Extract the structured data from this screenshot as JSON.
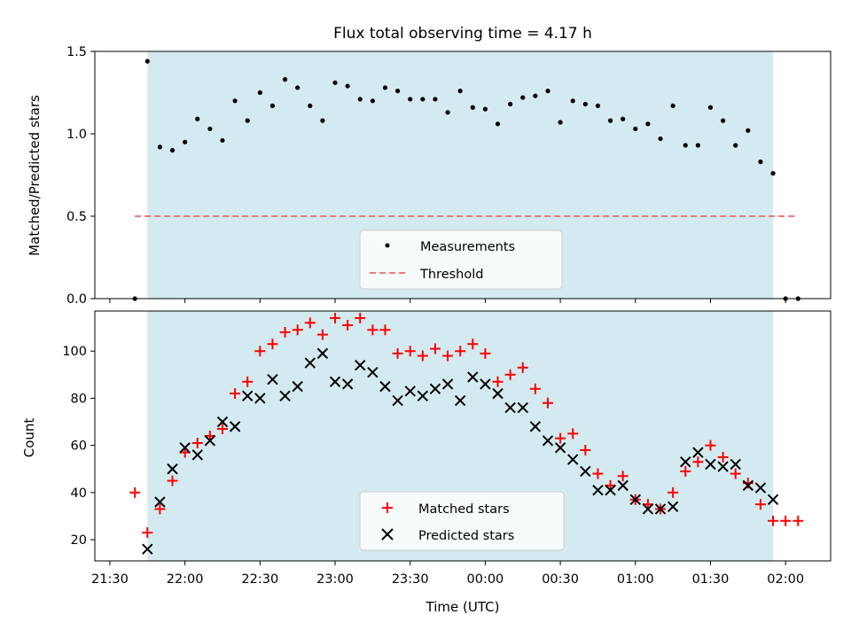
{
  "chart_data": [
    {
      "id": "top",
      "type": "scatter",
      "title": "Flux total observing time = 4.17 h",
      "ylabel": "Matched/Predicted stars",
      "xlabel": "",
      "ylim": [
        0,
        1.5
      ],
      "yticks": [
        0.0,
        0.5,
        1.0,
        1.5
      ],
      "ytick_labels": [
        "0.0",
        "0.5",
        "1.0",
        "1.5"
      ],
      "x_is_time": true,
      "xlim": [
        "21:24",
        "02:18"
      ],
      "shaded_interval": [
        "21:45",
        "01:55"
      ],
      "shade_color": "#d3eaf0",
      "series": [
        {
          "name": "Measurements",
          "marker": "dot",
          "color": "#000000",
          "x": [
            "21:40",
            "21:45",
            "21:50",
            "21:55",
            "22:00",
            "22:05",
            "22:10",
            "22:15",
            "22:20",
            "22:25",
            "22:30",
            "22:35",
            "22:40",
            "22:45",
            "22:50",
            "22:55",
            "23:00",
            "23:05",
            "23:10",
            "23:15",
            "23:20",
            "23:25",
            "23:30",
            "23:35",
            "23:40",
            "23:45",
            "23:50",
            "23:55",
            "00:00",
            "00:05",
            "00:10",
            "00:15",
            "00:20",
            "00:25",
            "00:30",
            "00:35",
            "00:40",
            "00:45",
            "00:50",
            "00:55",
            "01:00",
            "01:05",
            "01:10",
            "01:15",
            "01:20",
            "01:25",
            "01:30",
            "01:35",
            "01:40",
            "01:45",
            "01:50",
            "01:55",
            "02:00",
            "02:05"
          ],
          "y": [
            0.0,
            1.44,
            0.92,
            0.9,
            0.95,
            1.09,
            1.03,
            0.96,
            1.2,
            1.08,
            1.25,
            1.17,
            1.33,
            1.28,
            1.17,
            1.08,
            1.31,
            1.29,
            1.21,
            1.2,
            1.28,
            1.26,
            1.21,
            1.21,
            1.21,
            1.13,
            1.26,
            1.16,
            1.15,
            1.06,
            1.18,
            1.22,
            1.23,
            1.26,
            1.07,
            1.2,
            1.18,
            1.17,
            1.08,
            1.09,
            1.03,
            1.06,
            0.97,
            1.17,
            0.93,
            0.93,
            1.16,
            1.08,
            0.93,
            1.02,
            0.83,
            0.76,
            0.0,
            0.0
          ]
        },
        {
          "name": "Threshold",
          "type": "hline",
          "style": "dashed",
          "color": "#f07878",
          "y": 0.5,
          "x": [
            "21:40",
            "02:05"
          ]
        }
      ],
      "legend": "lower center"
    },
    {
      "id": "bottom",
      "type": "scatter",
      "title": "",
      "ylabel": "Count",
      "xlabel": "Time (UTC)",
      "ylim": [
        11,
        117
      ],
      "yticks": [
        20,
        40,
        60,
        80,
        100
      ],
      "ytick_labels": [
        "20",
        "40",
        "60",
        "80",
        "100"
      ],
      "x_is_time": true,
      "xlim": [
        "21:24",
        "02:18"
      ],
      "xticks": [
        "21:30",
        "22:00",
        "22:30",
        "23:00",
        "23:30",
        "00:00",
        "00:30",
        "01:00",
        "01:30",
        "02:00"
      ],
      "xtick_labels": [
        "21:30",
        "22:00",
        "22:30",
        "23:00",
        "23:30",
        "00:00",
        "00:30",
        "01:00",
        "01:30",
        "02:00"
      ],
      "shaded_interval": [
        "21:45",
        "01:55"
      ],
      "shade_color": "#d3eaf0",
      "series": [
        {
          "name": "Matched stars",
          "marker": "plus",
          "color": "#ff0000",
          "x": [
            "21:40",
            "21:45",
            "21:50",
            "21:55",
            "22:00",
            "22:05",
            "22:10",
            "22:15",
            "22:20",
            "22:25",
            "22:30",
            "22:35",
            "22:40",
            "22:45",
            "22:50",
            "22:55",
            "23:00",
            "23:05",
            "23:10",
            "23:15",
            "23:20",
            "23:25",
            "23:30",
            "23:35",
            "23:40",
            "23:45",
            "23:50",
            "23:55",
            "00:00",
            "00:05",
            "00:10",
            "00:15",
            "00:20",
            "00:25",
            "00:30",
            "00:35",
            "00:40",
            "00:45",
            "00:50",
            "00:55",
            "01:00",
            "01:05",
            "01:10",
            "01:15",
            "01:20",
            "01:25",
            "01:30",
            "01:35",
            "01:40",
            "01:45",
            "01:50",
            "01:55",
            "02:00",
            "02:05"
          ],
          "y": [
            40,
            23,
            33,
            45,
            57,
            61,
            64,
            67,
            82,
            87,
            100,
            103,
            108,
            109,
            112,
            107,
            114,
            111,
            114,
            109,
            109,
            99,
            100,
            98,
            101,
            98,
            100,
            103,
            99,
            87,
            90,
            93,
            84,
            78,
            63,
            65,
            58,
            48,
            43,
            47,
            37,
            35,
            33,
            40,
            49,
            53,
            60,
            55,
            48,
            44,
            35,
            28,
            28,
            28
          ]
        },
        {
          "name": "Predicted stars",
          "marker": "x",
          "color": "#000000",
          "x": [
            "21:45",
            "21:50",
            "21:55",
            "22:00",
            "22:05",
            "22:10",
            "22:15",
            "22:20",
            "22:25",
            "22:30",
            "22:35",
            "22:40",
            "22:45",
            "22:50",
            "22:55",
            "23:00",
            "23:05",
            "23:10",
            "23:15",
            "23:20",
            "23:25",
            "23:30",
            "23:35",
            "23:40",
            "23:45",
            "23:50",
            "23:55",
            "00:00",
            "00:05",
            "00:10",
            "00:15",
            "00:20",
            "00:25",
            "00:30",
            "00:35",
            "00:40",
            "00:45",
            "00:50",
            "00:55",
            "01:00",
            "01:05",
            "01:10",
            "01:15",
            "01:20",
            "01:25",
            "01:30",
            "01:35",
            "01:40",
            "01:45",
            "01:50",
            "01:55"
          ],
          "y": [
            16,
            36,
            50,
            59,
            56,
            62,
            70,
            68,
            81,
            80,
            88,
            81,
            85,
            95,
            99,
            87,
            86,
            94,
            91,
            85,
            79,
            83,
            81,
            84,
            86,
            79,
            89,
            86,
            82,
            76,
            76,
            68,
            62,
            59,
            54,
            49,
            41,
            41,
            43,
            37,
            33,
            33,
            34,
            53,
            57,
            52,
            51,
            52,
            43,
            42,
            37
          ]
        }
      ],
      "legend": "lower center"
    }
  ]
}
